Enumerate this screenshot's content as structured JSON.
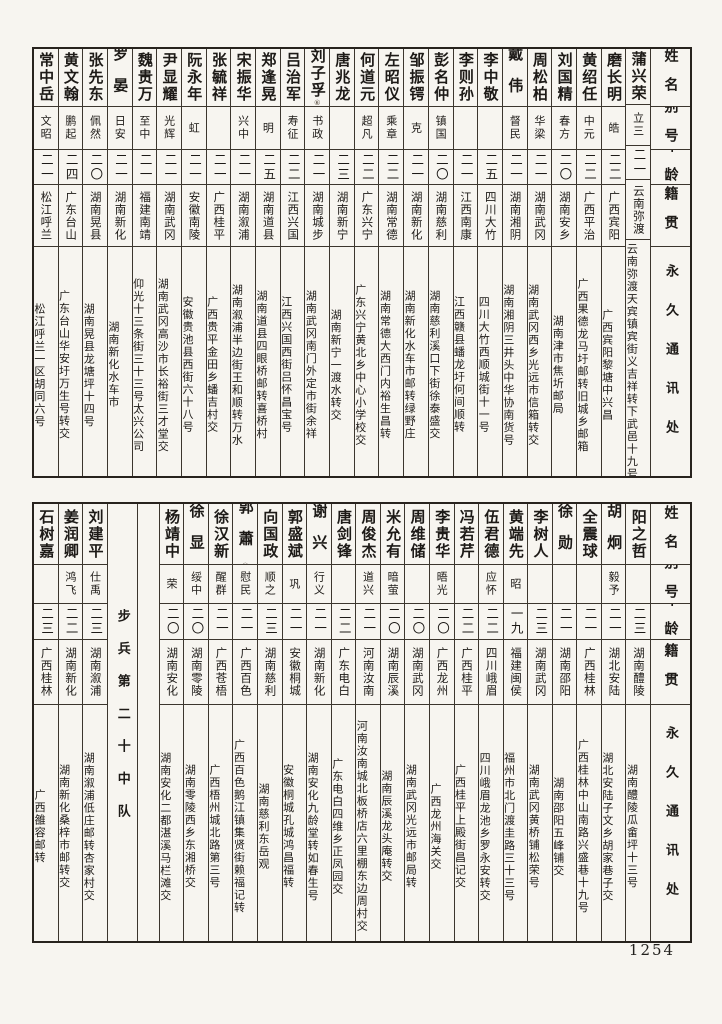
{
  "page": {
    "number": "1254"
  },
  "table_headers": {
    "name": "姓名",
    "alias": "别号",
    "age": "年龄",
    "native": "籍贯",
    "address": "永久通讯处"
  },
  "unit": {
    "label": "步兵第二十中队"
  },
  "top_table": {
    "people": [
      {
        "name": "蒲兴荣",
        "alias": "立三",
        "age": "二一",
        "native": "云南弥渡",
        "address": "云南弥渡天宾镇宾街义吉祥转下武邑十九号"
      },
      {
        "name": "磨长明",
        "alias": "皓",
        "age": "二二",
        "native": "广西宾阳",
        "address": "广西宾阳黎塘中兴昌"
      },
      {
        "name": "黄绍任",
        "alias": "中元",
        "age": "二二",
        "native": "广西平治",
        "address": "广西果德龙马圩邮转旧城乡邮箱"
      },
      {
        "name": "刘国精",
        "alias": "春方",
        "age": "二〇",
        "native": "湖南安乡",
        "address": "湖南津市焦圻邮局"
      },
      {
        "name": "周松柏",
        "alias": "华梁",
        "age": "二一",
        "native": "湖南武冈",
        "address": "湖南武冈西乡光远市信箱转交"
      },
      {
        "name": "戴伟",
        "alias": "督民",
        "age": "二一",
        "native": "湖南湘阴",
        "address": "湖南湘阴三井头中华协南货号"
      },
      {
        "name": "李中敬",
        "alias": "",
        "age": "二五",
        "native": "四川大竹",
        "address": "四川大竹西顺城街十一号"
      },
      {
        "name": "李则孙",
        "alias": "",
        "age": "二一",
        "native": "江西南康",
        "address": "江西赣县蟠龙圩何间顺转"
      },
      {
        "name": "彭名仲",
        "alias": "镇国",
        "age": "二〇",
        "native": "湖南慈利",
        "address": "湖南慈利溪口下街徐泰盛交"
      },
      {
        "name": "邹振锷",
        "alias": "克",
        "age": "二一",
        "native": "湖南新化",
        "address": "湖南新化水车市邮转绿野庄"
      },
      {
        "name": "左昭仪",
        "alias": "乘章",
        "age": "二二",
        "native": "湖南常德",
        "address": "湖南常德大西门内裕生昌转"
      },
      {
        "name": "何道元",
        "alias": "超凡",
        "age": "二二",
        "native": "广东兴宁",
        "address": "广东兴宁黄北乡中心小学校交"
      },
      {
        "name": "唐兆龙",
        "alias": "",
        "age": "二三",
        "native": "湖南新宁",
        "address": "湖南新宁一渡水转交"
      },
      {
        "name": "刘子孚",
        "alias": "书政",
        "age": "二一",
        "native": "湖南城步",
        "address": "湖南武冈南门外定市街余祥",
        "note": "⑥"
      },
      {
        "name": "吕治军",
        "alias": "寿征",
        "age": "二二",
        "native": "江西兴国",
        "address": "江西兴国西街吕怀昌宝号"
      },
      {
        "name": "郑逢晃",
        "alias": "明",
        "age": "二五",
        "native": "湖南道县",
        "address": "湖南道县四眼桥邮转喜桥村"
      },
      {
        "name": "宋振华",
        "alias": "兴中",
        "age": "二一",
        "native": "湖南溆浦",
        "address": "湖南溆浦半边街王和顺转万水"
      },
      {
        "name": "张毓祥",
        "alias": "",
        "age": "二一",
        "native": "广西桂平",
        "address": "广西贵平金田乡蟠吉村交"
      },
      {
        "name": "阮永年",
        "alias": "虹",
        "age": "二一",
        "native": "安徽南陵",
        "address": "安徽贵池县西街六十八号"
      },
      {
        "name": "尹显耀",
        "alias": "光辉",
        "age": "二一",
        "native": "湖南武冈",
        "address": "湖南武冈高沙市长裕街三才堂交"
      },
      {
        "name": "魏贵万",
        "alias": "至中",
        "age": "二一",
        "native": "福建南靖",
        "address": "仰光十三条街三十三号太兴公司"
      },
      {
        "name": "罗晏",
        "alias": "日安",
        "age": "二一",
        "native": "湖南新化",
        "address": "湖南新化水车市"
      },
      {
        "name": "张先东",
        "alias": "佩然",
        "age": "二〇",
        "native": "湖南晃县",
        "address": "湖南晃县龙塘坪十四号"
      },
      {
        "name": "黄文翰",
        "alias": "鹏起",
        "age": "二四",
        "native": "广东台山",
        "address": "广东台山华安圩万生号转交"
      },
      {
        "name": "常中岳",
        "alias": "文昭",
        "age": "二一",
        "native": "松江呼兰",
        "address": "松江呼兰一区胡同六号"
      }
    ]
  },
  "bottom_table": {
    "people_right": [
      {
        "name": "阳之哲",
        "alias": "",
        "age": "二三",
        "native": "湖南醴陵",
        "address": "湖南醴陵瓜畲坪十三号"
      },
      {
        "name": "胡炯",
        "alias": "毅予",
        "age": "二一",
        "native": "湖北安陆",
        "address": "湖北安陆子文乡胡家巷子交"
      },
      {
        "name": "全震球",
        "alias": "",
        "age": "二一",
        "native": "广西桂林",
        "address": "广西桂林中山南路兴盛巷十九号"
      },
      {
        "name": "徐勋",
        "alias": "",
        "age": "二一",
        "native": "湖南邵阳",
        "address": "湖南邵阳五峰铺交"
      },
      {
        "name": "李树人",
        "alias": "",
        "age": "二三",
        "native": "湖南武冈",
        "address": "湖南武冈黄桥铺松荣号"
      },
      {
        "name": "黄端先",
        "alias": "昭",
        "age": "一九",
        "native": "福建闽侯",
        "address": "福州市北门渡圭路三十三号"
      },
      {
        "name": "伍君德",
        "alias": "应怀",
        "age": "二二",
        "native": "四川峨眉",
        "address": "四川峨眉龙池乡罗永安转交"
      },
      {
        "name": "冯若芹",
        "alias": "",
        "age": "二二",
        "native": "广西桂平",
        "address": "广西桂平上殿街昌记交"
      },
      {
        "name": "李贵华",
        "alias": "晤光",
        "age": "二〇",
        "native": "广西龙州",
        "address": "广西龙州海关交"
      },
      {
        "name": "周维储",
        "alias": "",
        "age": "二〇",
        "native": "湖南武冈",
        "address": "湖南武冈光远市邮局转"
      },
      {
        "name": "米允有",
        "alias": "暗萤",
        "age": "二〇",
        "native": "湖南辰溪",
        "address": "湖南辰溪龙头庵转交"
      },
      {
        "name": "周俊杰",
        "alias": "道兴",
        "age": "二一",
        "native": "河南汝南",
        "address": "河南汝南城北板桥店六里棚东边周村交"
      },
      {
        "name": "唐剑锋",
        "alias": "",
        "age": "二二",
        "native": "广东电白",
        "address": "广东电白四维乡正凤园交"
      },
      {
        "name": "谢兴",
        "alias": "行义",
        "age": "二一",
        "native": "湖南新化",
        "address": "湖南安化九龄堂转如春生号"
      },
      {
        "name": "郭盛斌",
        "alias": "巩",
        "age": "二一",
        "native": "安徽桐城",
        "address": "安徽桐城孔城鸿昌福转"
      },
      {
        "name": "向国政",
        "alias": "顺之",
        "age": "二三",
        "native": "湖南慈利",
        "address": "湖南慈利东岳观"
      },
      {
        "name": "郭蕭",
        "alias": "慰民",
        "age": "二一",
        "native": "广西百色",
        "address": "广西百色鹅江镇集贤街赖福记转",
        "note": "⑦"
      },
      {
        "name": "徐汉新",
        "alias": "醒群",
        "age": "二一",
        "native": "广西苍梧",
        "address": "广西梧州城北路第三号"
      },
      {
        "name": "徐显",
        "alias": "绥中",
        "age": "二〇",
        "native": "湖南零陵",
        "address": "湖南零陵西乡东湘桥交"
      },
      {
        "name": "杨靖中",
        "alias": "荣",
        "age": "二〇",
        "native": "湖南安化",
        "address": "湖南安化二都湛溪马栏滩交"
      }
    ],
    "people_left": [
      {
        "name": "刘建平",
        "alias": "仕禹",
        "age": "二三",
        "native": "湖南溆浦",
        "address": "湖南溆浦低庄邮转杏家村交"
      },
      {
        "name": "姜润卿",
        "alias": "鸿飞",
        "age": "二二",
        "native": "湖南新化",
        "address": "湖南新化桑梓市邮转交"
      },
      {
        "name": "石树嘉",
        "alias": "",
        "age": "二三",
        "native": "广西桂林",
        "address": "广西雒容邮转"
      }
    ]
  }
}
